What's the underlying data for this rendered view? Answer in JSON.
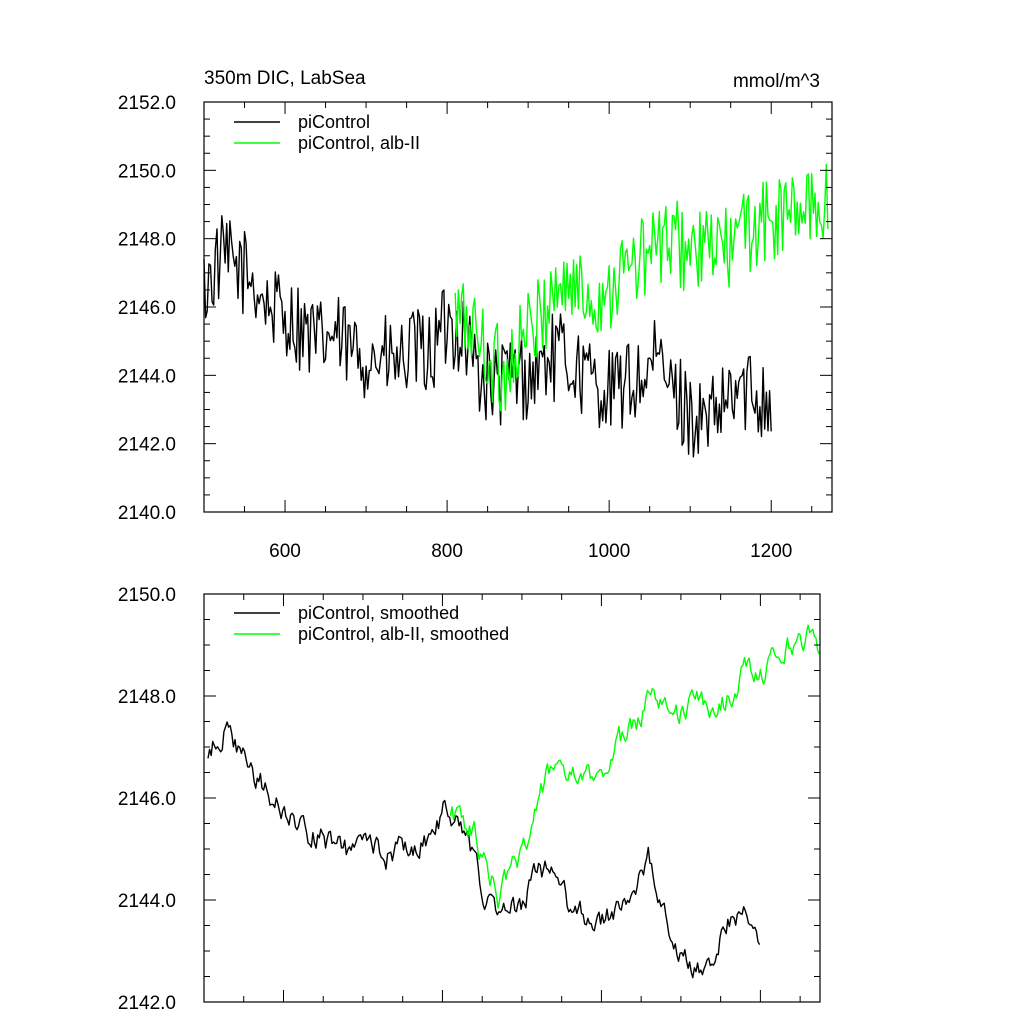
{
  "colors": {
    "black": "#000000",
    "green": "#00ff00"
  },
  "chart_data": [
    {
      "type": "line",
      "title": "350m DIC, LabSea",
      "units": "mmol/m^3",
      "xlim": [
        500,
        1275
      ],
      "ylim": [
        2140.0,
        2152.0
      ],
      "xticks": [
        600,
        800,
        1000,
        1200
      ],
      "xtick_labels": [
        "600",
        "800",
        "1000",
        "1200"
      ],
      "yticks": [
        2140.0,
        2142.0,
        2144.0,
        2146.0,
        2148.0,
        2150.0,
        2152.0
      ],
      "ytick_labels": [
        "2140.0",
        "2142.0",
        "2144.0",
        "2146.0",
        "2148.0",
        "2150.0",
        "2152.0"
      ],
      "legend_position": "top-left",
      "series": [
        {
          "name": "piControl",
          "color": "#000000",
          "x": [
            500,
            520,
            540,
            560,
            580,
            600,
            620,
            640,
            660,
            680,
            700,
            720,
            740,
            760,
            780,
            800,
            820,
            840,
            860,
            880,
            900,
            920,
            940,
            960,
            980,
            1000,
            1020,
            1040,
            1060,
            1080,
            1100,
            1120,
            1140,
            1160,
            1180,
            1200
          ],
          "y": [
            2146.5,
            2147.4,
            2147.2,
            2146.8,
            2146.0,
            2145.8,
            2145.4,
            2144.9,
            2145.2,
            2144.7,
            2144.6,
            2144.5,
            2144.3,
            2144.7,
            2144.6,
            2145.5,
            2145.3,
            2144.0,
            2143.6,
            2144.1,
            2143.9,
            2144.4,
            2144.6,
            2144.2,
            2143.8,
            2143.5,
            2143.7,
            2143.9,
            2144.4,
            2143.5,
            2142.9,
            2142.5,
            2143.0,
            2143.6,
            2143.5,
            2143.4
          ]
        },
        {
          "name": "piControl, alb-II",
          "color": "#00ff00",
          "x": [
            810,
            830,
            850,
            870,
            890,
            910,
            930,
            950,
            970,
            990,
            1010,
            1030,
            1050,
            1070,
            1090,
            1110,
            1130,
            1150,
            1170,
            1190,
            1210,
            1230,
            1250,
            1270
          ],
          "y": [
            2145.7,
            2145.5,
            2144.6,
            2144.0,
            2145.0,
            2145.4,
            2146.5,
            2146.7,
            2146.3,
            2146.3,
            2146.9,
            2147.2,
            2147.6,
            2147.9,
            2147.8,
            2147.5,
            2147.8,
            2147.7,
            2148.3,
            2148.4,
            2148.6,
            2148.8,
            2148.9,
            2149.1
          ]
        }
      ]
    },
    {
      "type": "line",
      "xlim": [
        500,
        1275
      ],
      "ylim": [
        2142.0,
        2150.0
      ],
      "yticks": [
        2142.0,
        2144.0,
        2146.0,
        2148.0,
        2150.0
      ],
      "ytick_labels": [
        "2142.0",
        "2144.0",
        "2146.0",
        "2148.0",
        "2150.0"
      ],
      "legend_position": "top-left",
      "series": [
        {
          "name": "piControl, smoothed",
          "color": "#000000",
          "x": [
            505,
            525,
            540,
            555,
            570,
            590,
            610,
            630,
            650,
            670,
            690,
            710,
            730,
            750,
            770,
            790,
            805,
            815,
            825,
            840,
            860,
            880,
            900,
            920,
            940,
            960,
            980,
            1000,
            1020,
            1040,
            1060,
            1080,
            1100,
            1120,
            1140,
            1160,
            1180,
            1200
          ],
          "y": [
            2146.8,
            2147.3,
            2147.0,
            2146.6,
            2146.3,
            2145.9,
            2145.6,
            2145.3,
            2145.2,
            2145.0,
            2144.9,
            2145.2,
            2144.9,
            2145.0,
            2145.1,
            2145.3,
            2145.9,
            2145.6,
            2145.3,
            2144.8,
            2143.8,
            2143.7,
            2143.9,
            2144.6,
            2144.5,
            2143.9,
            2143.7,
            2143.5,
            2143.9,
            2144.0,
            2144.8,
            2143.7,
            2142.9,
            2142.6,
            2142.9,
            2143.6,
            2143.7,
            2143.2
          ]
        },
        {
          "name": "piControl, alb-II, smoothed",
          "color": "#00ff00",
          "x": [
            810,
            825,
            840,
            855,
            870,
            885,
            900,
            915,
            930,
            945,
            960,
            975,
            990,
            1005,
            1020,
            1035,
            1050,
            1065,
            1080,
            1095,
            1110,
            1125,
            1140,
            1155,
            1170,
            1185,
            1200,
            1215,
            1230,
            1245,
            1260,
            1275
          ],
          "y": [
            2145.7,
            2145.6,
            2145.3,
            2144.6,
            2144.1,
            2144.5,
            2145.0,
            2145.6,
            2146.3,
            2146.8,
            2146.4,
            2146.3,
            2146.4,
            2146.6,
            2147.1,
            2147.3,
            2147.6,
            2148.3,
            2147.9,
            2147.6,
            2147.8,
            2147.9,
            2147.7,
            2147.9,
            2148.2,
            2148.6,
            2148.4,
            2148.8,
            2148.9,
            2149.1,
            2149.2,
            2148.8
          ]
        }
      ]
    }
  ]
}
